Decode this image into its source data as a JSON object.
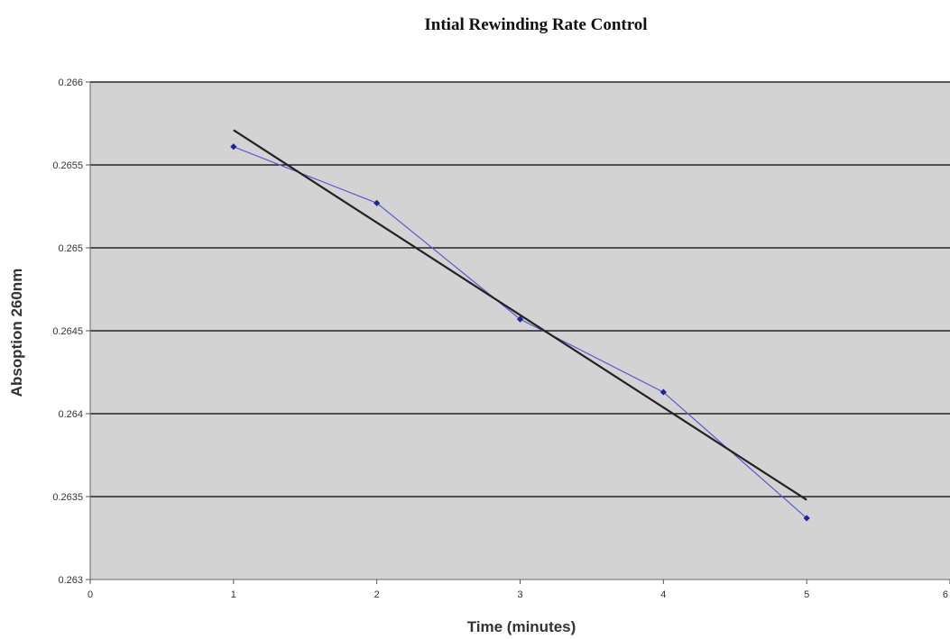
{
  "chart_data": {
    "type": "scatter",
    "title": "Intial Rewinding Rate Control",
    "xlabel": "Time (minutes)",
    "ylabel": "Absoption 260nm",
    "xlim": [
      0,
      6
    ],
    "ylim": [
      0.263,
      0.266
    ],
    "x_ticks": [
      0,
      1,
      2,
      3,
      4,
      5,
      6
    ],
    "x_tick_labels": [
      "0",
      "1",
      "2",
      "3",
      "4",
      "5",
      "6"
    ],
    "y_ticks": [
      0.263,
      0.2635,
      0.264,
      0.2645,
      0.265,
      0.2655,
      0.266
    ],
    "y_tick_labels": [
      "0.263",
      "0.2635",
      "0.264",
      "0.2645",
      "0.265",
      "0.2655",
      "0.266"
    ],
    "grid": "horizontal",
    "legend": "none",
    "series": [
      {
        "x": [
          1,
          2,
          3,
          4,
          5
        ],
        "values": [
          0.26561,
          0.26527,
          0.26457,
          0.26413,
          0.26337
        ],
        "color": "#1f1fa8",
        "marker": "diamond",
        "line": "connected"
      }
    ],
    "trendline": {
      "type": "linear",
      "x": [
        1,
        5
      ],
      "values": [
        0.26571,
        0.26348
      ],
      "color": "#222222"
    },
    "plot_background": "#d3d3d3"
  }
}
